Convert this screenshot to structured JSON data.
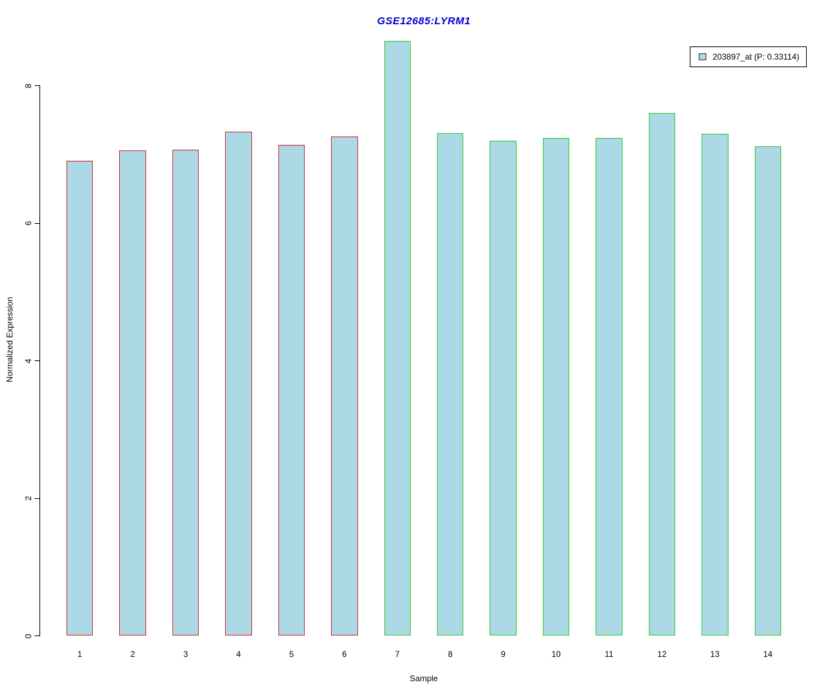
{
  "chart_data": {
    "type": "bar",
    "title": "GSE12685:LYRM1",
    "title_color": "#0000CC",
    "xlabel": "Sample",
    "ylabel": "Normalized Expression",
    "categories": [
      "1",
      "2",
      "3",
      "4",
      "5",
      "6",
      "7",
      "8",
      "9",
      "10",
      "11",
      "12",
      "13",
      "14"
    ],
    "values": [
      6.91,
      7.06,
      7.07,
      7.33,
      7.14,
      7.26,
      8.65,
      7.31,
      7.2,
      7.24,
      7.24,
      7.6,
      7.3,
      7.12
    ],
    "bar_fill": "#ADD8E6",
    "bar_border_colors": [
      "#CC2B36",
      "#CC2B36",
      "#CC2B36",
      "#CC2B36",
      "#CC2B36",
      "#CC2B36",
      "#33CC33",
      "#33CC33",
      "#33CC33",
      "#33CC33",
      "#33CC33",
      "#33CC33",
      "#33CC33",
      "#33CC33"
    ],
    "group_colors": {
      "samples_1_6": "#CC2B36",
      "samples_7_14": "#33CC33"
    },
    "axis_color": "#000000",
    "yticks": [
      0,
      2,
      4,
      6,
      8
    ],
    "ylim": [
      0,
      8.65
    ],
    "grid": false,
    "legend": {
      "position": "top-right",
      "entries": [
        {
          "label": "203897_at (P: 0.33114)",
          "swatch_fill": "#ADD8E6",
          "swatch_border": "#333333"
        }
      ]
    }
  }
}
